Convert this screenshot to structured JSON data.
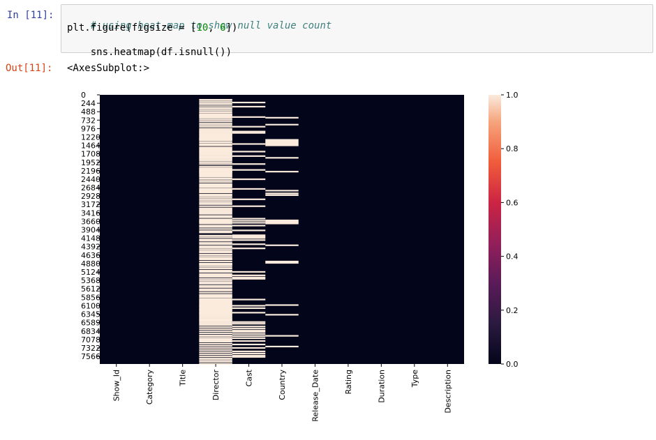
{
  "cell": {
    "in_prompt": "In [11]:",
    "out_prompt": "Out[11]:",
    "code": {
      "comment": "# using heat-map to show null value count",
      "line2_prefix": "plt.figure(figsize = [",
      "line2_n1": "10",
      "line2_sep": ", ",
      "line2_n2": "6",
      "line2_suffix": "])",
      "line3": "sns.heatmap(df.isnull())"
    },
    "output_text": "<AxesSubplot:>"
  },
  "colors": {
    "prompt_in": "#303f9f",
    "prompt_out": "#d84315",
    "comment": "#408080",
    "number": "#008800",
    "heat_background": "#03051a",
    "null_stripe": "#faebdd"
  },
  "chart_data": {
    "type": "heatmap",
    "rows": 7787,
    "columns": [
      "Show_Id",
      "Category",
      "Title",
      "Director",
      "Cast",
      "Country",
      "Release_Date",
      "Rating",
      "Duration",
      "Type",
      "Description"
    ],
    "y_tick_labels": [
      "0",
      "244",
      "488",
      "732",
      "976",
      "1220",
      "1464",
      "1708",
      "1952",
      "2196",
      "2440",
      "2684",
      "2928",
      "3172",
      "3416",
      "3660",
      "3904",
      "4148",
      "4392",
      "4636",
      "4880",
      "5124",
      "5368",
      "5612",
      "5856",
      "6100",
      "6345",
      "6589",
      "6834",
      "7078",
      "7322",
      "7566"
    ],
    "colorbar": {
      "min": 0.0,
      "max": 1.0,
      "ticks": [
        "0.0",
        "0.2",
        "0.4",
        "0.6",
        "0.8",
        "1.0"
      ],
      "colormap": "rocket"
    },
    "null_rows": {
      "Director": [
        120,
        170,
        220,
        270,
        330,
        380,
        430,
        480,
        530,
        560,
        580,
        610,
        640,
        690,
        740,
        800,
        850,
        900,
        960,
        1000,
        1040,
        1060,
        1100,
        1130,
        1160,
        1200,
        1230,
        1250,
        1270,
        1300,
        1350,
        1400,
        1440,
        1500,
        1540,
        1580,
        1620,
        1650,
        1690,
        1730,
        1770,
        1800,
        1840,
        1880,
        1930,
        1980,
        2050,
        2100,
        2120,
        2150,
        2170,
        2200,
        2220,
        2250,
        2280,
        2320,
        2350,
        2400,
        2450,
        2500,
        2560,
        2600,
        2640,
        2690,
        2720,
        2750,
        2770,
        2800,
        2860,
        2900,
        2950,
        3000,
        3050,
        3100,
        3140,
        3200,
        3260,
        3300,
        3340,
        3380,
        3420,
        3480,
        3520,
        3580,
        3620,
        3640,
        3660,
        3700,
        3760,
        3800,
        3860,
        3920,
        3960,
        4050,
        4100,
        4160,
        4200,
        4260,
        4300,
        4360,
        4400,
        4450,
        4500,
        4540,
        4600,
        4650,
        4700,
        4740,
        4800,
        4860,
        4880,
        4900,
        4950,
        5000,
        5060,
        5100,
        5160,
        5200,
        5240,
        5300,
        5350,
        5400,
        5440,
        5500,
        5540,
        5600,
        5640,
        5700,
        5760,
        5800,
        5840,
        5890,
        5930,
        5960,
        6000,
        6040,
        6080,
        6100,
        6140,
        6180,
        6200,
        6240,
        6280,
        6300,
        6340,
        6380,
        6420,
        6460,
        6490,
        6520,
        6560,
        6600,
        6640,
        6700,
        6760,
        6820,
        6880,
        6940,
        6990,
        7040,
        7080,
        7120,
        7180,
        7240,
        7300,
        7360,
        7420,
        7480,
        7540,
        7600,
        7650,
        7700,
        7760
      ],
      "Cast": [
        200,
        320,
        620,
        900,
        1040,
        1080,
        1400,
        1620,
        1750,
        1980,
        2150,
        2420,
        2700,
        3000,
        3200,
        3560,
        3620,
        3680,
        3760,
        3900,
        4040,
        4080,
        4120,
        4180,
        4300,
        4420,
        5100,
        5200,
        5260,
        5300,
        5900,
        6080,
        6150,
        6280,
        6550,
        6600,
        6680,
        6740,
        6800,
        6840,
        6900,
        6960,
        7020,
        7100,
        7200,
        7300,
        7400,
        7460,
        7520,
        7560
      ],
      "Country": [
        640,
        840,
        1280,
        1320,
        1360,
        1400,
        1440,
        1800,
        2200,
        2750,
        2830,
        2880,
        3610,
        3640,
        3670,
        3700,
        4330,
        4800,
        4840,
        6060,
        6340,
        6950,
        7260
      ]
    }
  }
}
